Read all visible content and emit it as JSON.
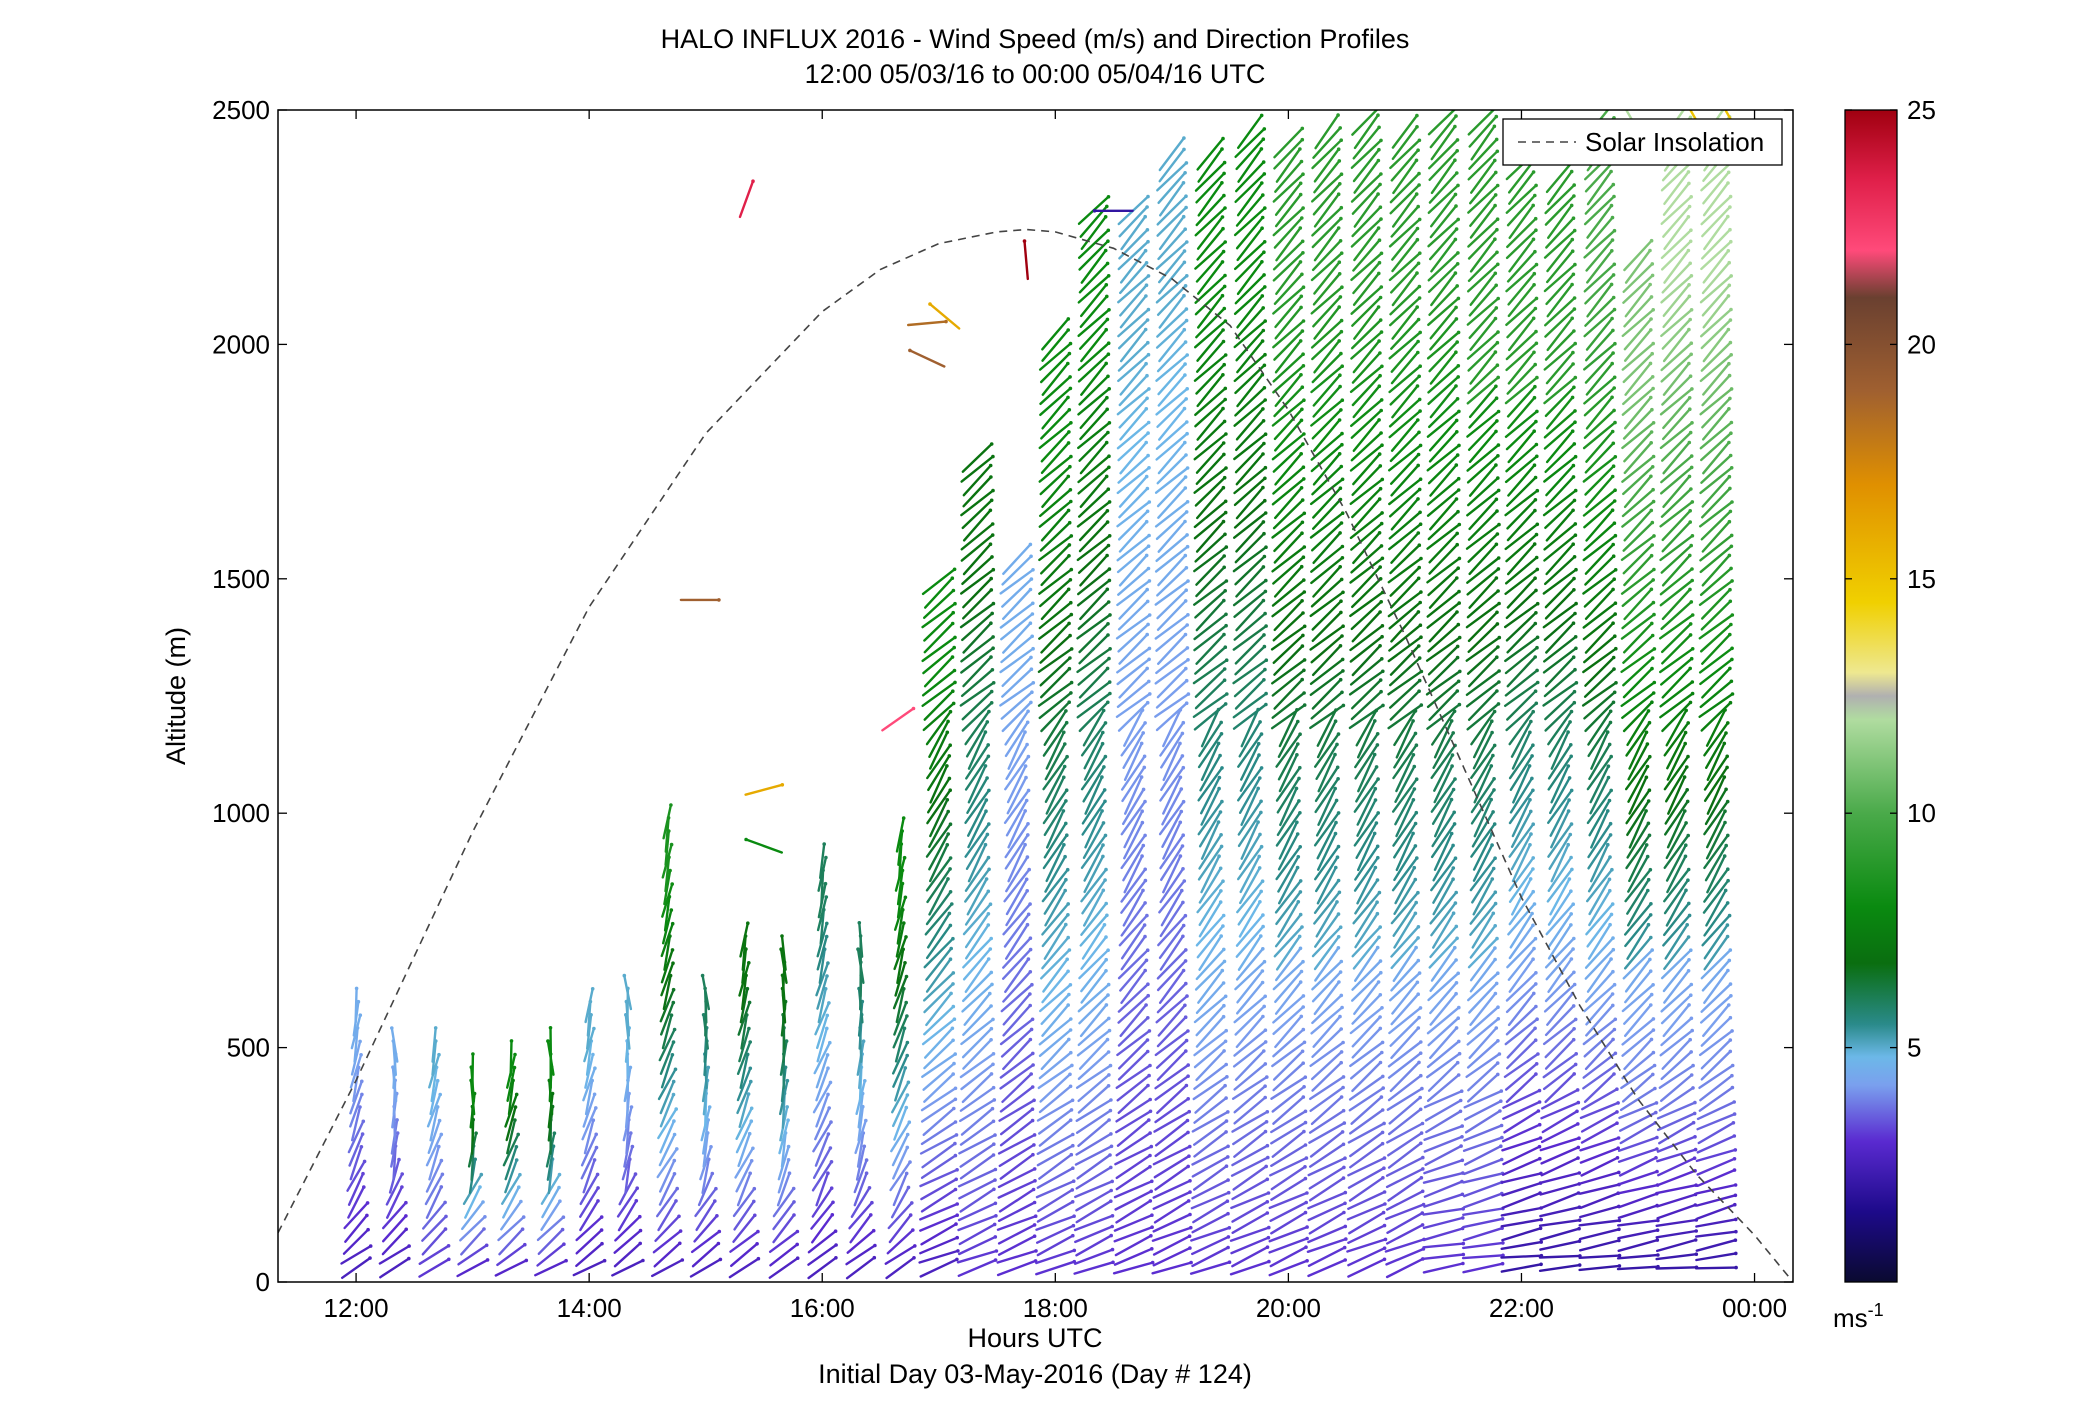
{
  "chart_data": {
    "type": "wind-profile",
    "title": "HALO INFLUX 2016 - Wind Speed (m/s) and Direction Profiles",
    "subtitle": "12:00 05/03/16 to 00:00 05/04/16  UTC",
    "xlabel": "Hours UTC",
    "xlabel2": "Initial Day 03-May-2016 (Day # 124)",
    "ylabel": "Altitude (m)",
    "xlim": [
      11.33,
      24.33
    ],
    "ylim": [
      0,
      2500
    ],
    "x_ticks": [
      12,
      14,
      16,
      18,
      20,
      22,
      24
    ],
    "x_tick_labels": [
      "12:00",
      "14:00",
      "16:00",
      "18:00",
      "20:00",
      "22:00",
      "00:00"
    ],
    "y_ticks": [
      0,
      500,
      1000,
      1500,
      2000,
      2500
    ],
    "y_tick_labels": [
      "0",
      "500",
      "1000",
      "1500",
      "2000",
      "2500"
    ],
    "legend": {
      "label": "Solar Insolation",
      "placement": "top-right",
      "style": "dashed",
      "color": "#444444"
    },
    "colorbar": {
      "label": "ms",
      "label_sup": "-1",
      "range": [
        0,
        25
      ],
      "ticks": [
        5,
        10,
        15,
        20,
        25
      ],
      "tick_labels": [
        "5",
        "10",
        "15",
        "20",
        "25"
      ],
      "stops": [
        {
          "v": 0,
          "c": "#0a0a30"
        },
        {
          "v": 1.5,
          "c": "#1d0a8a"
        },
        {
          "v": 3,
          "c": "#5a2ad0"
        },
        {
          "v": 4.2,
          "c": "#7aa0ee"
        },
        {
          "v": 4.8,
          "c": "#6cb8e8"
        },
        {
          "v": 5.5,
          "c": "#2a8a8a"
        },
        {
          "v": 6.8,
          "c": "#0a6e10"
        },
        {
          "v": 8,
          "c": "#0a8a10"
        },
        {
          "v": 10,
          "c": "#4aaa4a"
        },
        {
          "v": 12,
          "c": "#b0dca0"
        },
        {
          "v": 12.5,
          "c": "#b0b0b0"
        },
        {
          "v": 13,
          "c": "#eee890"
        },
        {
          "v": 14.5,
          "c": "#f0d000"
        },
        {
          "v": 17,
          "c": "#e09000"
        },
        {
          "v": 19,
          "c": "#a06030"
        },
        {
          "v": 21,
          "c": "#6a4030"
        },
        {
          "v": 22,
          "c": "#ff4a7a"
        },
        {
          "v": 23.5,
          "c": "#e0204a"
        },
        {
          "v": 25,
          "c": "#a00010"
        }
      ]
    },
    "solar_insolation": {
      "x": [
        11.33,
        12,
        13,
        14,
        15,
        16,
        16.5,
        17,
        17.5,
        17.75,
        18,
        18.5,
        19,
        19.5,
        20,
        20.5,
        21,
        21.5,
        22,
        22.5,
        23,
        23.5,
        24,
        24.33
      ],
      "y": [
        105,
        430,
        960,
        1440,
        1810,
        2070,
        2160,
        2215,
        2240,
        2245,
        2240,
        2205,
        2140,
        2040,
        1860,
        1640,
        1380,
        1100,
        820,
        590,
        390,
        230,
        100,
        0
      ]
    },
    "profile_times": [
      12,
      12.33,
      12.67,
      13,
      13.33,
      13.67,
      14,
      14.33,
      14.67,
      15,
      15.33,
      15.67,
      16,
      16.33,
      16.67,
      17,
      17.33,
      17.67,
      18,
      18.33,
      18.67,
      19,
      19.33,
      19.67,
      20,
      20.33,
      20.67,
      21,
      21.33,
      21.67,
      22,
      22.33,
      22.67,
      23,
      23.33,
      23.67
    ],
    "profile_top_altitudes": [
      600,
      525,
      530,
      470,
      500,
      520,
      590,
      620,
      1000,
      640,
      740,
      710,
      920,
      740,
      960,
      1500,
      1780,
      1560,
      2040,
      2300,
      2290,
      2420,
      2420,
      2470,
      2440,
      2470,
      2480,
      2460,
      2480,
      2490,
      2400,
      2370,
      2500,
      2200,
      2500,
      2500
    ],
    "profile_min_speeds": [
      2.5,
      2.5,
      3,
      2.5,
      2.5,
      2.5,
      2.5,
      2.5,
      2.5,
      2.5,
      2.5,
      2.5,
      2.5,
      2.5,
      2.5,
      2.5,
      3,
      3,
      3,
      3,
      3,
      3,
      3,
      3,
      3,
      3,
      3,
      3,
      3,
      3,
      2,
      2,
      2,
      2,
      2,
      2
    ],
    "profile_max_speeds": [
      4.5,
      4.5,
      5,
      8,
      8,
      8,
      5,
      5,
      8.5,
      6,
      7,
      7,
      6,
      6,
      8,
      8,
      7,
      4.5,
      8,
      8,
      5,
      5,
      8,
      8,
      9,
      9,
      9,
      9,
      9,
      9,
      9,
      9,
      10,
      11,
      12,
      12
    ],
    "isolated_barbs": [
      {
        "t": 15.35,
        "alt": 2310,
        "speed": 23.5
      },
      {
        "t": 17.75,
        "alt": 2180,
        "speed": 25
      },
      {
        "t": 17.05,
        "alt": 2060,
        "speed": 16
      },
      {
        "t": 16.9,
        "alt": 2045,
        "speed": 18.5
      },
      {
        "t": 16.9,
        "alt": 1970,
        "speed": 19
      },
      {
        "t": 14.95,
        "alt": 1455,
        "speed": 19
      },
      {
        "t": 16.65,
        "alt": 1200,
        "speed": 22
      },
      {
        "t": 15.5,
        "alt": 1050,
        "speed": 16
      },
      {
        "t": 15.5,
        "alt": 930,
        "speed": 8
      },
      {
        "t": 18.5,
        "alt": 2285,
        "speed": 2
      },
      {
        "t": 22.9,
        "alt": 2500,
        "speed": 12
      },
      {
        "t": 23.45,
        "alt": 2500,
        "speed": 15
      },
      {
        "t": 23.75,
        "alt": 2500,
        "speed": 15
      }
    ]
  }
}
